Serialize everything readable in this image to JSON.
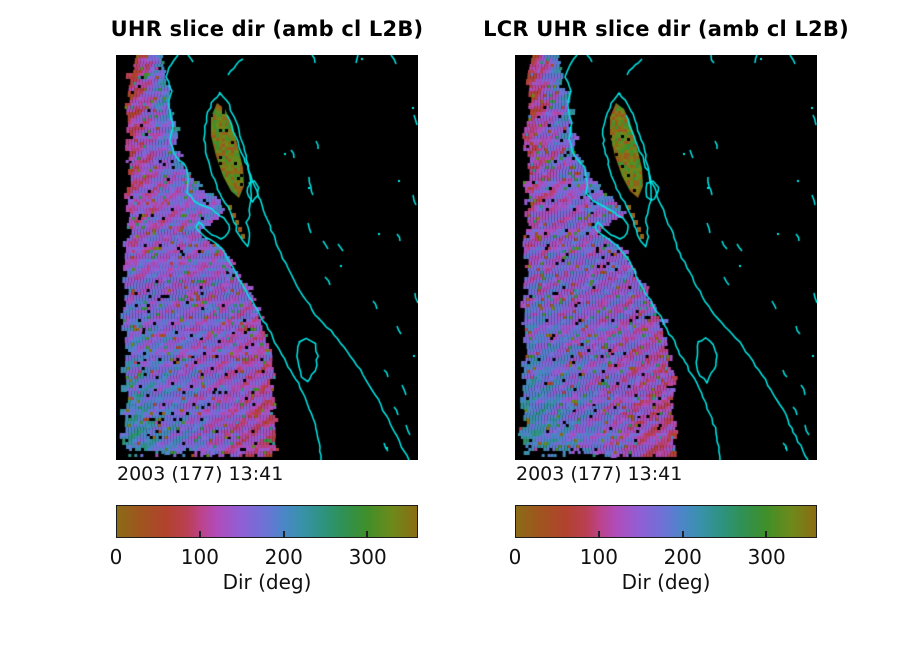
{
  "figure": {
    "bg": "#ffffff",
    "panels": [
      {
        "title": "UHR slice dir (amb cl L2B)",
        "date_label": "2003 (177) 13:41",
        "colorbar": {
          "label": "Dir (deg)",
          "ticks": [
            "0",
            "100",
            "200",
            "300"
          ],
          "tick_values": [
            0,
            100,
            200,
            300
          ],
          "min": 0,
          "max": 360
        }
      },
      {
        "title": "LCR UHR slice dir (amb cl L2B)",
        "date_label": "2003 (177) 13:41",
        "colorbar": {
          "label": "Dir (deg)",
          "ticks": [
            "0",
            "100",
            "200",
            "300"
          ],
          "tick_values": [
            0,
            100,
            200,
            300
          ],
          "min": 0,
          "max": 360
        }
      }
    ],
    "colorbar_gradient": [
      {
        "deg": 0,
        "color": "#8b6b17"
      },
      {
        "deg": 30,
        "color": "#a0541f"
      },
      {
        "deg": 60,
        "color": "#b2422e"
      },
      {
        "deg": 85,
        "color": "#ba3f55"
      },
      {
        "deg": 100,
        "color": "#bc4389"
      },
      {
        "deg": 120,
        "color": "#b14cba"
      },
      {
        "deg": 150,
        "color": "#8e60d6"
      },
      {
        "deg": 175,
        "color": "#7070d6"
      },
      {
        "deg": 200,
        "color": "#4b86c8"
      },
      {
        "deg": 220,
        "color": "#3a91ac"
      },
      {
        "deg": 245,
        "color": "#2e9383"
      },
      {
        "deg": 270,
        "color": "#2f9157"
      },
      {
        "deg": 300,
        "color": "#3f8f2a"
      },
      {
        "deg": 330,
        "color": "#6d8a1b"
      },
      {
        "deg": 360,
        "color": "#8b6c13"
      }
    ],
    "map": {
      "bg": "#000000",
      "coast_color": "#00e8e8",
      "land_dot_color": "#000000"
    }
  },
  "chart_data": [
    {
      "type": "heatmap",
      "title": "UHR slice dir (amb cl L2B)",
      "annotation": "2003 (177) 13:41",
      "colorbar_label": "Dir (deg)",
      "colorbar_ticks": [
        0,
        100,
        200,
        300
      ],
      "colorbar_range": [
        0,
        360
      ],
      "legend_position": "bottom",
      "description": "Ultra-high-resolution scatterometer wind-direction swath over the Gulf of California region; direction encoded with a cyclic colormap (olive-red-magenta-purple-blue-teal-green-olive), black background = no data, cyan contours = coastlines and islands"
    },
    {
      "type": "heatmap",
      "title": "LCR UHR slice dir (amb cl L2B)",
      "annotation": "2003 (177) 13:41",
      "colorbar_label": "Dir (deg)",
      "colorbar_ticks": [
        0,
        100,
        200,
        300
      ],
      "colorbar_range": [
        0,
        360
      ],
      "legend_position": "bottom",
      "description": "LCR-processed version of the same ultra-high-resolution wind-direction swath; visually near-identical to the left panel"
    }
  ]
}
